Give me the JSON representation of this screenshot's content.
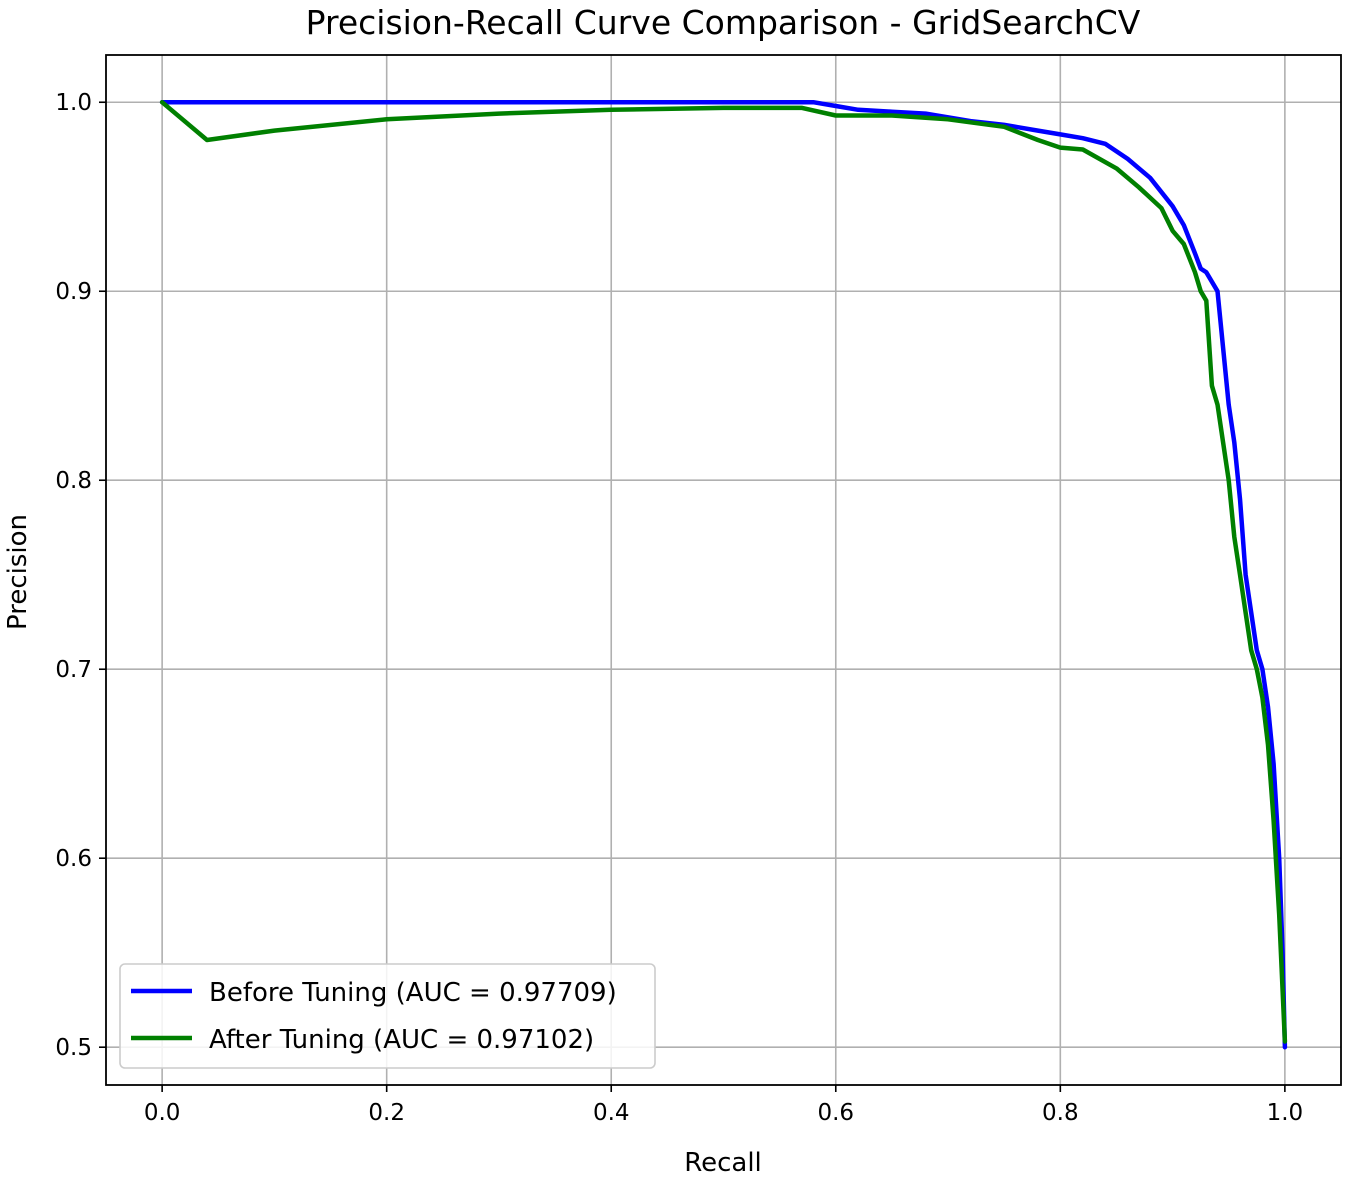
{
  "chart_data": {
    "type": "line",
    "title": "Precision-Recall Curve Comparison - GridSearchCV",
    "xlabel": "Recall",
    "ylabel": "Precision",
    "xlim": [
      -0.05,
      1.05
    ],
    "ylim": [
      0.48,
      1.025
    ],
    "xticks": [
      "0.0",
      "0.2",
      "0.4",
      "0.6",
      "0.8",
      "1.0"
    ],
    "yticks": [
      "0.5",
      "0.6",
      "0.7",
      "0.8",
      "0.9",
      "1.0"
    ],
    "grid": true,
    "legend_position": "lower-left",
    "series": [
      {
        "name": "Before Tuning (AUC = 0.97709)",
        "color": "#0000ff",
        "x": [
          0.0,
          0.58,
          0.6,
          0.62,
          0.65,
          0.68,
          0.72,
          0.75,
          0.78,
          0.8,
          0.82,
          0.84,
          0.86,
          0.88,
          0.9,
          0.91,
          0.92,
          0.925,
          0.93,
          0.94,
          0.945,
          0.95,
          0.955,
          0.96,
          0.965,
          0.97,
          0.975,
          0.98,
          0.985,
          0.99,
          0.995,
          0.998,
          1.0
        ],
        "y": [
          1.0,
          1.0,
          0.998,
          0.996,
          0.995,
          0.994,
          0.99,
          0.988,
          0.985,
          0.983,
          0.981,
          0.978,
          0.97,
          0.96,
          0.945,
          0.935,
          0.92,
          0.912,
          0.91,
          0.9,
          0.87,
          0.84,
          0.82,
          0.79,
          0.75,
          0.73,
          0.71,
          0.7,
          0.68,
          0.65,
          0.6,
          0.55,
          0.5
        ]
      },
      {
        "name": "After Tuning (AUC = 0.97102)",
        "color": "#008000",
        "x": [
          0.0,
          0.04,
          0.1,
          0.2,
          0.3,
          0.4,
          0.5,
          0.57,
          0.6,
          0.65,
          0.7,
          0.75,
          0.78,
          0.8,
          0.82,
          0.85,
          0.87,
          0.89,
          0.9,
          0.91,
          0.92,
          0.925,
          0.93,
          0.935,
          0.94,
          0.945,
          0.95,
          0.955,
          0.96,
          0.965,
          0.97,
          0.975,
          0.98,
          0.985,
          0.99,
          0.995,
          1.0
        ],
        "y": [
          1.0,
          0.98,
          0.985,
          0.991,
          0.994,
          0.996,
          0.997,
          0.997,
          0.993,
          0.993,
          0.991,
          0.987,
          0.98,
          0.976,
          0.975,
          0.965,
          0.955,
          0.944,
          0.932,
          0.925,
          0.91,
          0.9,
          0.895,
          0.85,
          0.84,
          0.82,
          0.8,
          0.77,
          0.75,
          0.73,
          0.71,
          0.7,
          0.685,
          0.66,
          0.62,
          0.57,
          0.503
        ]
      }
    ]
  }
}
